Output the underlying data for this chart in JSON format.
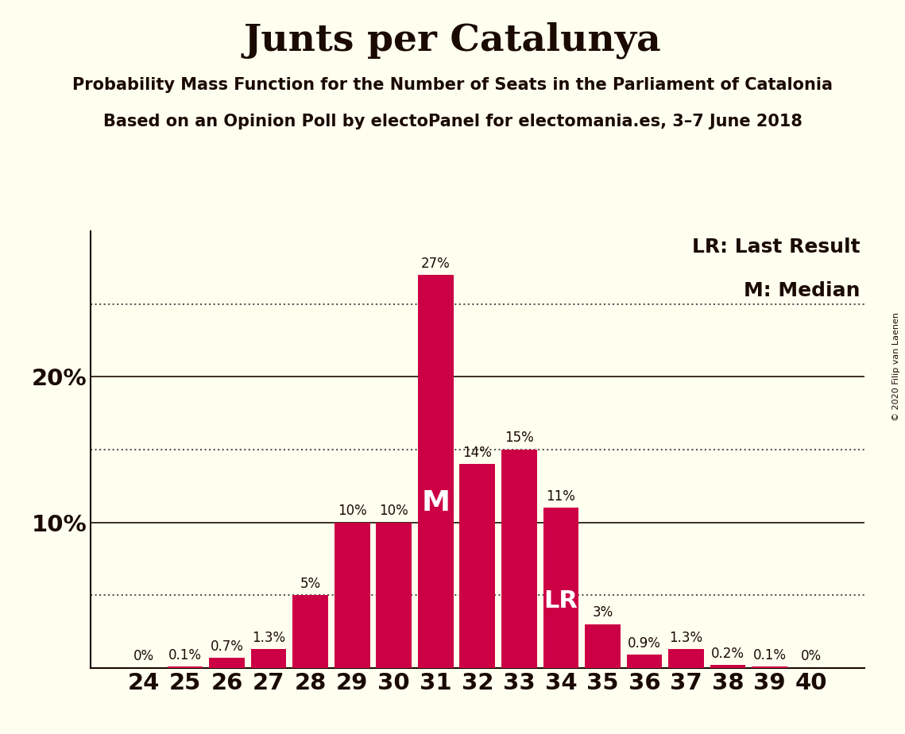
{
  "title": "Junts per Catalunya",
  "subtitle1": "Probability Mass Function for the Number of Seats in the Parliament of Catalonia",
  "subtitle2": "Based on an Opinion Poll by electoPanel for electomania.es, 3–7 June 2018",
  "copyright": "© 2020 Filip van Laenen",
  "seats": [
    24,
    25,
    26,
    27,
    28,
    29,
    30,
    31,
    32,
    33,
    34,
    35,
    36,
    37,
    38,
    39,
    40
  ],
  "values": [
    0.0,
    0.1,
    0.7,
    1.3,
    5.0,
    10.0,
    10.0,
    27.0,
    14.0,
    15.0,
    11.0,
    3.0,
    0.9,
    1.3,
    0.2,
    0.1,
    0.0
  ],
  "labels": [
    "0%",
    "0.1%",
    "0.7%",
    "1.3%",
    "5%",
    "10%",
    "10%",
    "27%",
    "14%",
    "15%",
    "11%",
    "3%",
    "0.9%",
    "1.3%",
    "0.2%",
    "0.1%",
    "0%"
  ],
  "bar_color": "#CC0044",
  "background_color": "#FFFFF0",
  "text_color": "#1a0a00",
  "median_seat": 31,
  "last_result_seat": 34,
  "dotted_lines": [
    5,
    15,
    25
  ],
  "solid_lines": [
    10,
    20
  ],
  "ylim": [
    0,
    30
  ],
  "legend_lr": "LR: Last Result",
  "legend_m": "M: Median",
  "title_fontsize": 34,
  "subtitle_fontsize": 15,
  "label_fontsize": 12,
  "ytick_fontsize": 21,
  "xtick_fontsize": 21,
  "legend_fontsize": 18,
  "m_fontsize": 26,
  "lr_fontsize": 22
}
